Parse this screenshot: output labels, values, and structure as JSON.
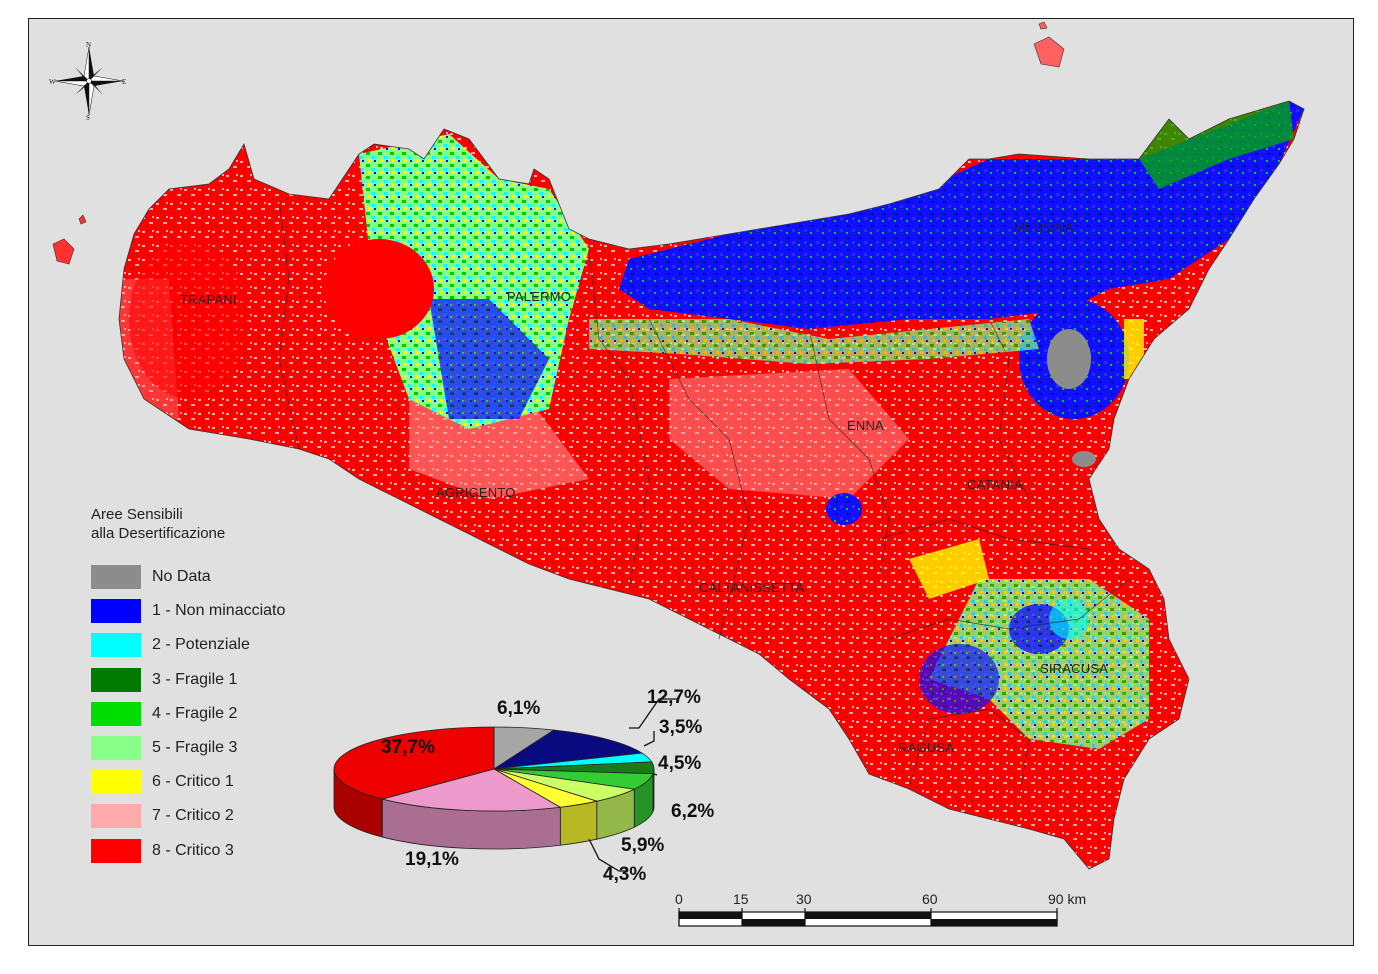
{
  "legend": {
    "title_line1": "Aree Sensibili",
    "title_line2": "alla Desertificazione",
    "items": [
      {
        "label": "No Data",
        "color": "#8c8c8c"
      },
      {
        "label": "1 - Non minacciato",
        "color": "#0000ff"
      },
      {
        "label": "2 - Potenziale",
        "color": "#00ffff"
      },
      {
        "label": "3 - Fragile 1",
        "color": "#007a00"
      },
      {
        "label": "4 - Fragile 2",
        "color": "#00dd00"
      },
      {
        "label": "5 - Fragile 3",
        "color": "#88ff88"
      },
      {
        "label": "6 - Critico 1",
        "color": "#ffff00"
      },
      {
        "label": "7 - Critico 2",
        "color": "#ffaaaa"
      },
      {
        "label": "8 - Critico 3",
        "color": "#ff0000"
      }
    ]
  },
  "cities": {
    "trapani": "TRAPANI",
    "palermo": "PALERMO",
    "messina": "MESSINA",
    "enna": "ENNA",
    "catania": "CATANIA",
    "agrigento": "AGRIGENTO",
    "caltanissetta": "CALTANISSETTA",
    "siracusa": "SIRACUSA",
    "ragusa": "RAGUSA"
  },
  "compass": {
    "n": "N",
    "s": "S",
    "e": "E",
    "w": "W"
  },
  "chart_data": {
    "type": "pie",
    "unit": "%",
    "slices": [
      {
        "label": "No Data",
        "value": 6.1,
        "text": "6,1%",
        "color": "#a6a6a6"
      },
      {
        "label": "1 - Non minacciato",
        "value": 12.7,
        "text": "12,7%",
        "color": "#0a0a80"
      },
      {
        "label": "2 - Potenziale",
        "value": 3.5,
        "text": "3,5%",
        "color": "#00ffff"
      },
      {
        "label": "3 - Fragile 1",
        "value": 4.5,
        "text": "4,5%",
        "color": "#1a7a1a"
      },
      {
        "label": "4 - Fragile 2",
        "value": 6.2,
        "text": "6,2%",
        "color": "#33cc33"
      },
      {
        "label": "5 - Fragile 3",
        "value": 5.9,
        "text": "5,9%",
        "color": "#ccff66"
      },
      {
        "label": "6 - Critico 1",
        "value": 4.3,
        "text": "4,3%",
        "color": "#ffff33"
      },
      {
        "label": "7 - Critico 2",
        "value": 19.1,
        "text": "19,1%",
        "color": "#ee99cc"
      },
      {
        "label": "8 - Critico 3",
        "value": 37.7,
        "text": "37,7%",
        "color": "#ee0000"
      }
    ]
  },
  "scale": {
    "ticks": [
      "0",
      "15",
      "30",
      "60",
      "90 km"
    ],
    "values": [
      0,
      15,
      30,
      60,
      90
    ]
  }
}
